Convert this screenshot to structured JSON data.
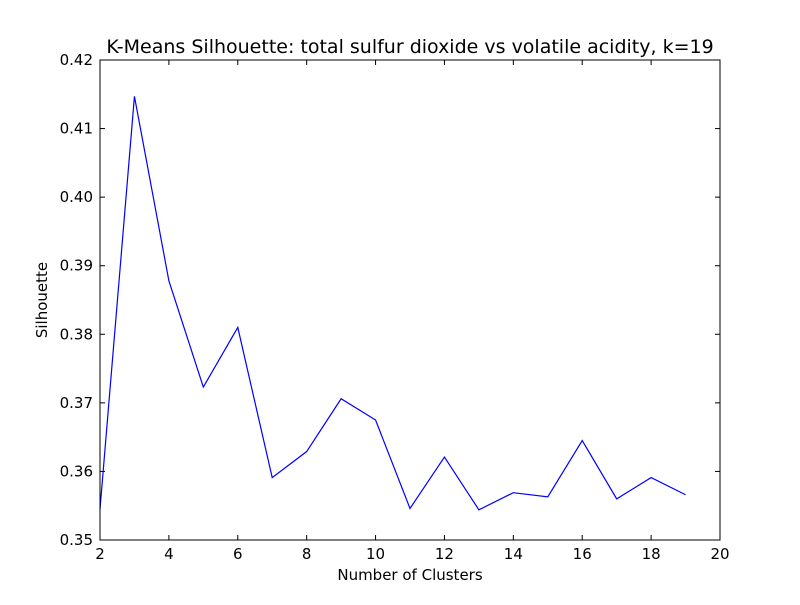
{
  "chart_data": {
    "type": "line",
    "title": "K-Means Silhouette: total sulfur dioxide vs volatile acidity, k=19",
    "xlabel": "Number of Clusters",
    "ylabel": "Silhouette",
    "xlim": [
      2,
      20
    ],
    "ylim": [
      0.35,
      0.42
    ],
    "x_ticks": [
      "2",
      "4",
      "6",
      "8",
      "10",
      "12",
      "14",
      "16",
      "18",
      "20"
    ],
    "y_ticks": [
      "0.35",
      "0.36",
      "0.37",
      "0.38",
      "0.39",
      "0.40",
      "0.41",
      "0.42"
    ],
    "grid": false,
    "series": [
      {
        "color": "#0000ff",
        "x": [
          2,
          3,
          4,
          5,
          6,
          7,
          8,
          9,
          10,
          11,
          12,
          13,
          14,
          15,
          16,
          17,
          18,
          19
        ],
        "values": [
          0.3545,
          0.4147,
          0.3878,
          0.3723,
          0.381,
          0.3591,
          0.3629,
          0.3706,
          0.3675,
          0.3546,
          0.3621,
          0.3544,
          0.3569,
          0.3563,
          0.3645,
          0.356,
          0.3591,
          0.3566
        ]
      }
    ]
  }
}
